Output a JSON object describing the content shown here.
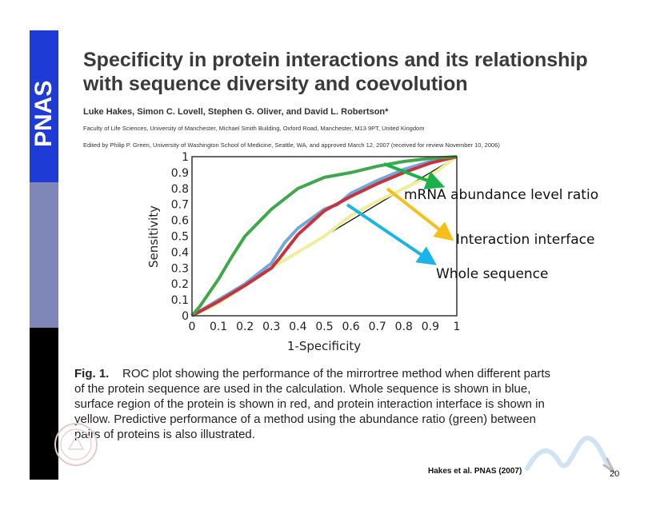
{
  "slide": {
    "journal_mark": "PNAS",
    "title_line1": "Specificity in protein interactions and its relationship",
    "title_line2": "with sequence diversity and coevolution",
    "authors": "Luke Hakes, Simon C. Lovell, Stephen G. Oliver, and David L. Robertson*",
    "affiliation": "Faculty of Life Sciences, University of Manchester, Michael Smith Building, Oxford Road, Manchester, M13 9PT, United Kingdom",
    "edited": "Edited by Philip P. Green, University of Washington School of Medicine, Seattle, WA, and approved March 12, 2007 (received for review November 10, 2006)",
    "caption_label": "Fig. 1.",
    "caption_text": "ROC plot showing the performance of the mirrortree method when different parts of the protein sequence are used in the calculation. Whole sequence is shown in blue, surface region of the protein is shown in red, and protein interaction interface is shown in yellow. Predictive performance of a method using the abundance ratio (green) between pairs of proteins is also illustrated.",
    "citation": "Hakes et al. PNAS (2007)",
    "page_number": "20"
  },
  "annotations": {
    "mrna": "mRNA abundance  level ratio",
    "interface": "Interaction interface",
    "whole": "Whole sequence"
  },
  "colors": {
    "sidebar_blue": "#1f3bd6",
    "green": "#3fa84a",
    "red": "#c8323a",
    "blue": "#6fa8dc",
    "yellow": "#f0ee9a",
    "arrow_green": "#1ab04a",
    "arrow_yellow": "#f5c01a",
    "arrow_blue": "#1ab5e8"
  },
  "chart_data": {
    "type": "line",
    "title": "",
    "xlabel": "1-Specificity",
    "ylabel": "Sensitivity",
    "xlim": [
      0,
      1
    ],
    "ylim": [
      0,
      1
    ],
    "xticks": [
      "0",
      "0.1",
      "0.2",
      "0.3",
      "0.4",
      "0.5",
      "0.6",
      "0.7",
      "0.8",
      "0.9",
      "1"
    ],
    "yticks": [
      "0",
      "0.1",
      "0.2",
      "0.3",
      "0.4",
      "0.5",
      "0.6",
      "0.7",
      "0.8",
      "0.9",
      "1"
    ],
    "grid": false,
    "series": [
      {
        "color": "#f0ee9a",
        "x": [
          0,
          0.1,
          0.2,
          0.3,
          0.4,
          0.5,
          0.6,
          0.7,
          0.8,
          0.9,
          0.95,
          1
        ],
        "y": [
          0,
          0.08,
          0.19,
          0.3,
          0.4,
          0.5,
          0.63,
          0.72,
          0.8,
          0.88,
          0.94,
          1
        ]
      },
      {
        "color": "#6fa8dc",
        "x": [
          0,
          0.1,
          0.2,
          0.3,
          0.35,
          0.4,
          0.5,
          0.55,
          0.6,
          0.7,
          0.8,
          0.9,
          1
        ],
        "y": [
          0,
          0.1,
          0.2,
          0.33,
          0.46,
          0.55,
          0.67,
          0.7,
          0.77,
          0.85,
          0.92,
          0.97,
          1
        ]
      },
      {
        "color": "#c8323a",
        "x": [
          0,
          0.1,
          0.2,
          0.3,
          0.33,
          0.4,
          0.5,
          0.6,
          0.7,
          0.8,
          0.9,
          1
        ],
        "y": [
          0,
          0.09,
          0.19,
          0.3,
          0.36,
          0.51,
          0.66,
          0.75,
          0.83,
          0.9,
          0.96,
          1
        ]
      },
      {
        "color": "#3fa84a",
        "x": [
          0,
          0.03,
          0.1,
          0.15,
          0.2,
          0.3,
          0.4,
          0.5,
          0.6,
          0.7,
          0.8,
          0.9,
          1
        ],
        "y": [
          0,
          0.06,
          0.23,
          0.37,
          0.5,
          0.67,
          0.8,
          0.87,
          0.9,
          0.94,
          0.97,
          0.99,
          1
        ]
      }
    ],
    "diagonal": {
      "x": [
        0,
        1
      ],
      "y": [
        0,
        1
      ],
      "color": "#111111"
    }
  }
}
